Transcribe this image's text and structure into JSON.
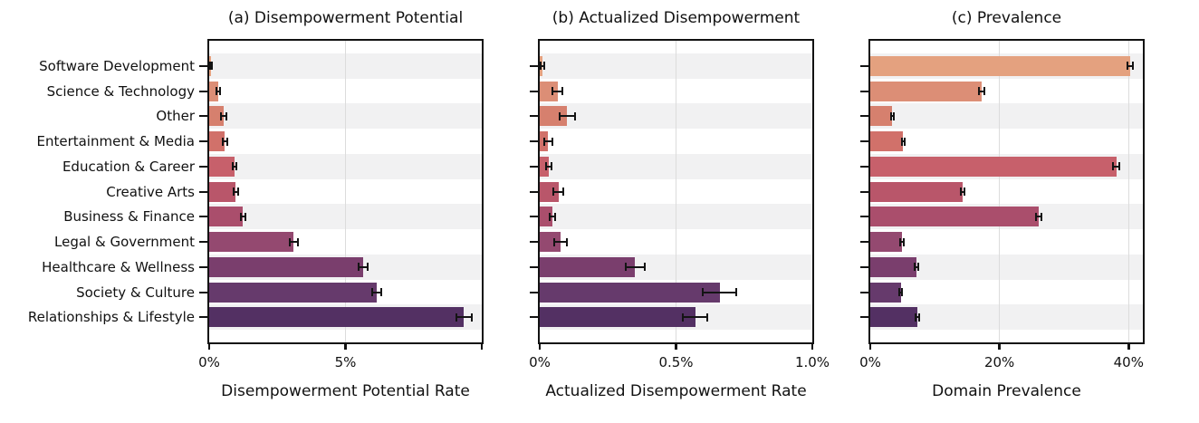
{
  "figure": {
    "background": "#ffffff",
    "text_color": "#111111",
    "stripe_color": "#f1f1f2",
    "grid_color": "#dcdcdc",
    "axis_color": "#121212",
    "bar_colors": [
      "#e4a17f",
      "#dc8e76",
      "#d6806e",
      "#d1716a",
      "#c7606b",
      "#b9566a",
      "#aa4e6c",
      "#944970",
      "#7a3e6d",
      "#663a6c",
      "#533063"
    ],
    "categories": [
      "Software Development",
      "Science & Technology",
      "Other",
      "Entertainment & Media",
      "Education & Career",
      "Creative Arts",
      "Business & Finance",
      "Legal & Government",
      "Healthcare & Wellness",
      "Society & Culture",
      "Relationships & Lifestyle"
    ]
  },
  "chart_data": [
    {
      "type": "bar",
      "orientation": "horizontal",
      "title": "(a) Disempowerment Potential",
      "xlabel": "Disempowerment Potential Rate",
      "categories": [
        "Software Development",
        "Science & Technology",
        "Other",
        "Entertainment & Media",
        "Education & Career",
        "Creative Arts",
        "Business & Finance",
        "Legal & Government",
        "Healthcare & Wellness",
        "Society & Culture",
        "Relationships & Lifestyle"
      ],
      "values": [
        0.06,
        0.34,
        0.52,
        0.58,
        0.92,
        0.98,
        1.24,
        3.1,
        5.65,
        6.15,
        9.35
      ],
      "errors": [
        0.04,
        0.06,
        0.1,
        0.09,
        0.07,
        0.07,
        0.08,
        0.15,
        0.16,
        0.17,
        0.27
      ],
      "xlim": [
        0,
        10
      ],
      "xticks": [
        0,
        5,
        10
      ],
      "xtick_labels": [
        "0%",
        "5%",
        ""
      ],
      "grid": true,
      "unit": "percent",
      "legend": "none"
    },
    {
      "type": "bar",
      "orientation": "horizontal",
      "title": "(b) Actualized Disempowerment",
      "xlabel": "Actualized Disempowerment Rate",
      "categories": [
        "Software Development",
        "Science & Technology",
        "Other",
        "Entertainment & Media",
        "Education & Career",
        "Creative Arts",
        "Business & Finance",
        "Legal & Government",
        "Healthcare & Wellness",
        "Society & Culture",
        "Relationships & Lifestyle"
      ],
      "values": [
        0.01,
        0.066,
        0.1,
        0.031,
        0.033,
        0.069,
        0.047,
        0.077,
        0.35,
        0.66,
        0.57
      ],
      "errors": [
        0.008,
        0.018,
        0.028,
        0.015,
        0.009,
        0.018,
        0.01,
        0.023,
        0.036,
        0.062,
        0.046
      ],
      "xlim": [
        0,
        1.0
      ],
      "xticks": [
        0,
        0.5,
        1.0
      ],
      "xtick_labels": [
        "0%",
        "0.5%",
        "1.0%"
      ],
      "grid": true,
      "unit": "percent",
      "legend": "none"
    },
    {
      "type": "bar",
      "orientation": "horizontal",
      "title": "(c) Prevalence",
      "xlabel": "Domain Prevalence",
      "categories": [
        "Software Development",
        "Science & Technology",
        "Other",
        "Entertainment & Media",
        "Education & Career",
        "Creative Arts",
        "Business & Finance",
        "Legal & Government",
        "Healthcare & Wellness",
        "Society & Culture",
        "Relationships & Lifestyle"
      ],
      "values": [
        40.2,
        17.2,
        3.4,
        5.1,
        38.1,
        14.3,
        26.1,
        4.9,
        7.2,
        4.7,
        7.3
      ],
      "errors": [
        0.45,
        0.4,
        0.2,
        0.25,
        0.5,
        0.35,
        0.45,
        0.25,
        0.3,
        0.25,
        0.3
      ],
      "xlim": [
        0,
        42.2
      ],
      "xticks": [
        0,
        20,
        40
      ],
      "xtick_labels": [
        "0%",
        "20%",
        "40%"
      ],
      "grid": true,
      "unit": "percent",
      "legend": "none"
    }
  ]
}
